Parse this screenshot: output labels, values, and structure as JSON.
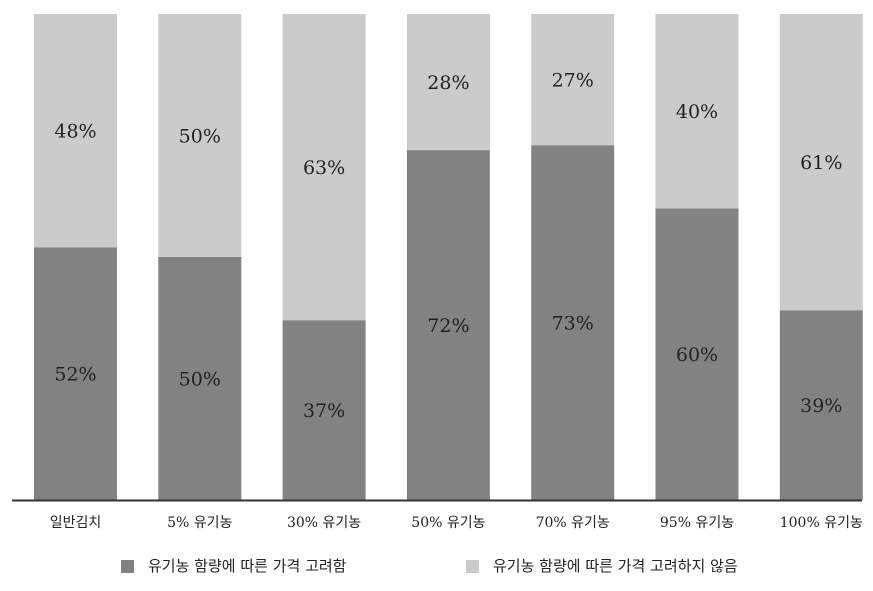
{
  "chart_data": {
    "type": "bar",
    "stacked": true,
    "percent": true,
    "categories": [
      "일반김치",
      "5% 유기농",
      "30% 유기농",
      "50% 유기농",
      "70% 유기농",
      "95% 유기농",
      "100% 유기농"
    ],
    "series": [
      {
        "name": "유기농 함량에 따른 가격 고려함",
        "values": [
          52,
          50,
          37,
          72,
          73,
          60,
          39
        ],
        "labels": [
          "52%",
          "50%",
          "37%",
          "72%",
          "73%",
          "60%",
          "39%"
        ],
        "color": "#828282"
      },
      {
        "name": "유기농 함량에 따른 가격 고려하지 않음",
        "values": [
          48,
          50,
          63,
          28,
          27,
          40,
          61
        ],
        "labels": [
          "48%",
          "50%",
          "63%",
          "28%",
          "27%",
          "40%",
          "61%"
        ],
        "color": "#cbcbcb"
      }
    ],
    "ylim": [
      0,
      100
    ],
    "grid": false,
    "legend_position": "bottom"
  }
}
